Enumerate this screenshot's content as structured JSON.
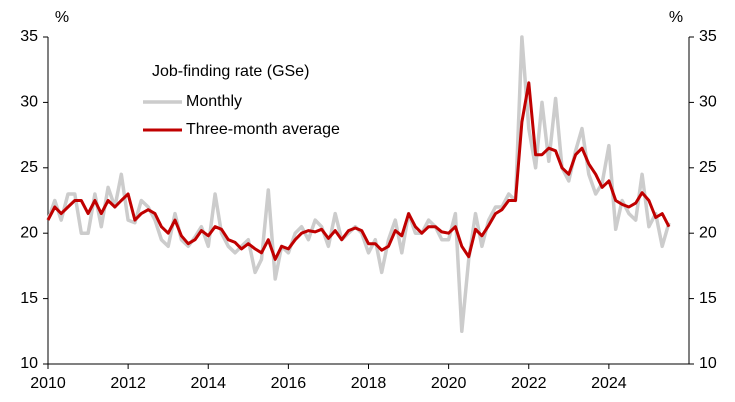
{
  "chart_data": {
    "type": "line",
    "legend_title": "Job-finding rate (GSe)",
    "y_label": "%",
    "y2_label": "%",
    "legend": "upper left",
    "grid": false,
    "x": [
      2010,
      2010.17,
      2010.33,
      2010.5,
      2010.67,
      2010.83,
      2011,
      2011.17,
      2011.33,
      2011.5,
      2011.67,
      2011.83,
      2012,
      2012.17,
      2012.33,
      2012.5,
      2012.67,
      2012.83,
      2013,
      2013.17,
      2013.33,
      2013.5,
      2013.67,
      2013.83,
      2014,
      2014.17,
      2014.33,
      2014.5,
      2014.67,
      2014.83,
      2015,
      2015.17,
      2015.33,
      2015.5,
      2015.67,
      2015.83,
      2016,
      2016.17,
      2016.33,
      2016.5,
      2016.67,
      2016.83,
      2017,
      2017.17,
      2017.33,
      2017.5,
      2017.67,
      2017.83,
      2018,
      2018.17,
      2018.33,
      2018.5,
      2018.67,
      2018.83,
      2019,
      2019.17,
      2019.33,
      2019.5,
      2019.67,
      2019.83,
      2020,
      2020.17,
      2020.33,
      2020.5,
      2020.67,
      2020.83,
      2021,
      2021.17,
      2021.33,
      2021.5,
      2021.67,
      2021.83,
      2022,
      2022.17,
      2022.33,
      2022.5,
      2022.67,
      2022.83,
      2023,
      2023.17,
      2023.33,
      2023.5,
      2023.67,
      2023.83,
      2024,
      2024.17,
      2024.33,
      2024.5,
      2024.67,
      2024.83,
      2025,
      2025.17,
      2025.33,
      2025.5
    ],
    "series": [
      {
        "name": "Monthly",
        "color": "#cccccc",
        "width": 3.5,
        "values": [
          21,
          22.5,
          21,
          23,
          23,
          20,
          20,
          23,
          20.5,
          23.5,
          22,
          24.5,
          21,
          20.8,
          22.5,
          22,
          21,
          19.5,
          19,
          21.5,
          19.5,
          19,
          19.7,
          20.5,
          19,
          23,
          20,
          19,
          18.5,
          19,
          19.5,
          17,
          18,
          23.3,
          16.5,
          19,
          18.5,
          20,
          20.5,
          19.5,
          21,
          20.5,
          19,
          21.5,
          19.5,
          20,
          20.5,
          20,
          18.5,
          19.5,
          17,
          19.5,
          21,
          18.5,
          21.5,
          20,
          20,
          21,
          20.5,
          19.5,
          19.5,
          21.5,
          12.5,
          18,
          21.5,
          19,
          21,
          22,
          22,
          23,
          22.5,
          35,
          28,
          25,
          30,
          25.5,
          30.3,
          25,
          24,
          26.3,
          28,
          24.5,
          23,
          23.8,
          26.7,
          20.3,
          22.5,
          21.5,
          21,
          24.5,
          20.5,
          21.5,
          19,
          20.8
        ]
      },
      {
        "name": "Three-month average",
        "color": "#c00000",
        "width": 3,
        "values": [
          21,
          22,
          21.5,
          22,
          22.5,
          22.5,
          21.5,
          22.5,
          21.5,
          22.5,
          22,
          22.5,
          23,
          21,
          21.5,
          21.8,
          21.5,
          20.5,
          20,
          21,
          19.8,
          19.2,
          19.5,
          20.2,
          19.8,
          20.5,
          20.3,
          19.5,
          19.3,
          18.8,
          19.2,
          18.8,
          18.5,
          19.5,
          18,
          19,
          18.8,
          19.5,
          20,
          20.2,
          20.1,
          20.3,
          19.6,
          20.2,
          19.5,
          20.2,
          20.4,
          20.2,
          19.2,
          19.2,
          18.7,
          19,
          20.2,
          19.8,
          21.5,
          20.5,
          20,
          20.5,
          20.5,
          20.1,
          20,
          20.5,
          19,
          18.2,
          20.3,
          19.8,
          20.6,
          21.5,
          21.8,
          22.5,
          22.5,
          28.5,
          31.5,
          26,
          26,
          26.5,
          26.3,
          25,
          24.5,
          26,
          26.5,
          25.3,
          24.5,
          23.5,
          24,
          22.5,
          22.2,
          22,
          22.3,
          23.1,
          22.5,
          21.2,
          21.5,
          20.5
        ]
      }
    ],
    "xlim": [
      2010,
      2026
    ],
    "xticks": [
      2010,
      2012,
      2014,
      2016,
      2018,
      2020,
      2022,
      2024
    ],
    "ylim": [
      10,
      35
    ],
    "yticks": [
      10,
      15,
      20,
      25,
      30,
      35
    ],
    "y2lim": [
      10,
      35
    ],
    "y2ticks": [
      10,
      15,
      20,
      25,
      30,
      35
    ]
  }
}
